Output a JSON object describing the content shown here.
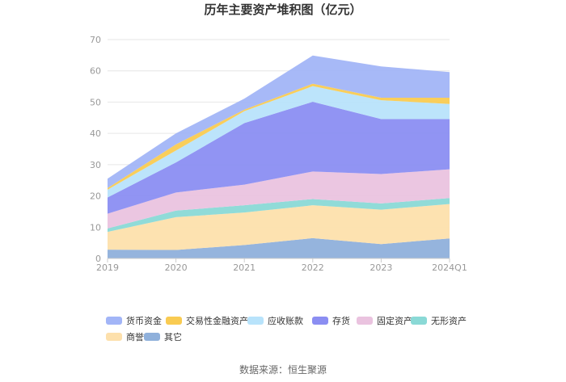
{
  "chart_data": {
    "type": "area",
    "stacked": true,
    "title": "历年主要资产堆积图（亿元）",
    "categories": [
      "2019",
      "2020",
      "2021",
      "2022",
      "2023",
      "2024Q1"
    ],
    "ylim": [
      0,
      70
    ],
    "yticks": [
      0,
      10,
      20,
      30,
      40,
      50,
      60,
      70
    ],
    "grid": true,
    "legend_position": "bottom",
    "series": [
      {
        "name": "其它",
        "color": "#8fb0db",
        "values": [
          2.8,
          2.7,
          4.3,
          6.5,
          4.6,
          6.4
        ]
      },
      {
        "name": "商誉",
        "color": "#fde0ac",
        "values": [
          5.7,
          10.5,
          10.4,
          10.5,
          11.0,
          11.0
        ]
      },
      {
        "name": "无形资产",
        "color": "#8ad9d6",
        "values": [
          1.1,
          2.1,
          2.3,
          2.0,
          2.0,
          1.9
        ]
      },
      {
        "name": "固定资产",
        "color": "#eac3df",
        "values": [
          4.7,
          5.8,
          6.6,
          8.8,
          9.4,
          9.2
        ]
      },
      {
        "name": "存货",
        "color": "#8b8ef2",
        "values": [
          5.2,
          9.6,
          19.7,
          22.3,
          17.6,
          16.1
        ]
      },
      {
        "name": "应收账款",
        "color": "#b8e3fb",
        "values": [
          2.5,
          3.8,
          3.8,
          5.0,
          6.0,
          4.8
        ]
      },
      {
        "name": "交易性金融资产",
        "color": "#f9cb52",
        "values": [
          0.5,
          2.0,
          0.5,
          0.8,
          0.8,
          2.0
        ]
      },
      {
        "name": "货币资金",
        "color": "#a2b5f7",
        "values": [
          3.0,
          3.5,
          3.5,
          9.0,
          10.0,
          8.2
        ]
      }
    ],
    "legend_order": [
      "货币资金",
      "交易性金融资产",
      "应收账款",
      "存货",
      "固定资产",
      "无形资产",
      "商誉",
      "其它"
    ]
  },
  "source_text": "数据来源：恒生聚源"
}
